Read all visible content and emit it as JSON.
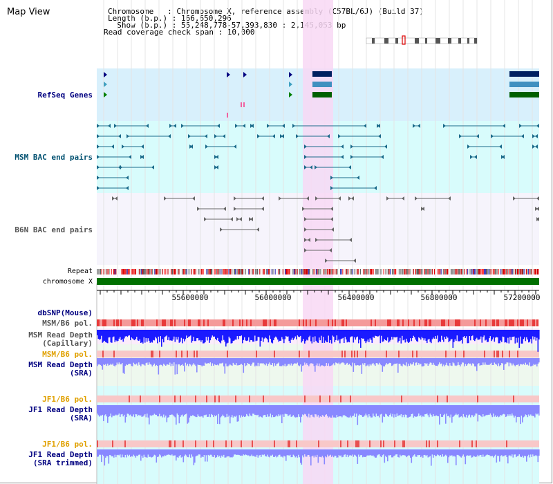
{
  "title": "Map View",
  "header": {
    "chromosome_line": "Chromosome   : Chromosome X, reference assembly (C57BL/6J) (Build 37)",
    "length_line": "Length (b.p.) : 166,650,296",
    "show_line": "  Show (b.p.) : 55,248,778-57,393,830 : 2,145,053 bp",
    "coverage_line": "Read coverage check span : 10,000"
  },
  "tracks": {
    "refseq": "RefSeq Genes",
    "msm_bac": "MSM BAC end pairs",
    "b6n_bac": "B6N BAC end pairs",
    "repeat": "Repeat",
    "chromosome": "chromosome X",
    "dbsnp": "dbSNP(Mouse)",
    "msm_b6_pol_1": "MSM/B6 pol.",
    "msm_depth_cap_1": "MSM Read Depth",
    "msm_depth_cap_2": "(Capillary)",
    "msm_b6_pol_2": "MSM/B6 pol.",
    "msm_depth_sra_1": "MSM Read Depth",
    "msm_depth_sra_2": "(SRA)",
    "jf1_b6_pol_1": "JF1/B6 pol.",
    "jf1_depth_sra_1": "JF1 Read Depth",
    "jf1_depth_sra_2": "(SRA)",
    "jf1_b6_pol_2": "JF1/B6 pol.",
    "jf1_depth_trim_1": "JF1 Read Depth",
    "jf1_depth_trim_2": "(SRA trimmed)"
  },
  "axis_ticks": [
    "55600000",
    "56000000",
    "56400000",
    "56800000",
    "57200000"
  ],
  "colors": {
    "highlight": "#f8d8f4",
    "refseq_bg": "#d8f0fc",
    "msm_bg": "#d8fcfc",
    "chrom_green": "#007000",
    "depth_blue": "#1a1aff",
    "depth_light": "#8888ff",
    "pol_red": "#f07070"
  }
}
